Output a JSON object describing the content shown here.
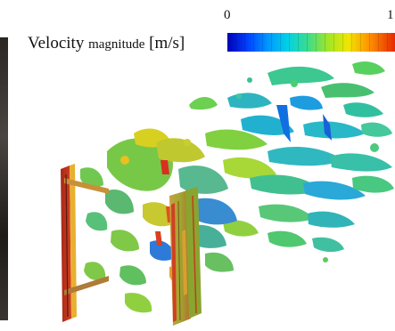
{
  "legend": {
    "label_main": "Velocity",
    "label_small": "magnitude",
    "label_unit": "[m/s]",
    "tick_min": "0",
    "tick_max": "1"
  },
  "colors": {
    "background": "#ffffff",
    "colormap": [
      "#0000b4",
      "#0040ff",
      "#0096ff",
      "#00d2e6",
      "#3cdc8c",
      "#a0e628",
      "#f0e600",
      "#ff9600",
      "#e62800"
    ]
  }
}
